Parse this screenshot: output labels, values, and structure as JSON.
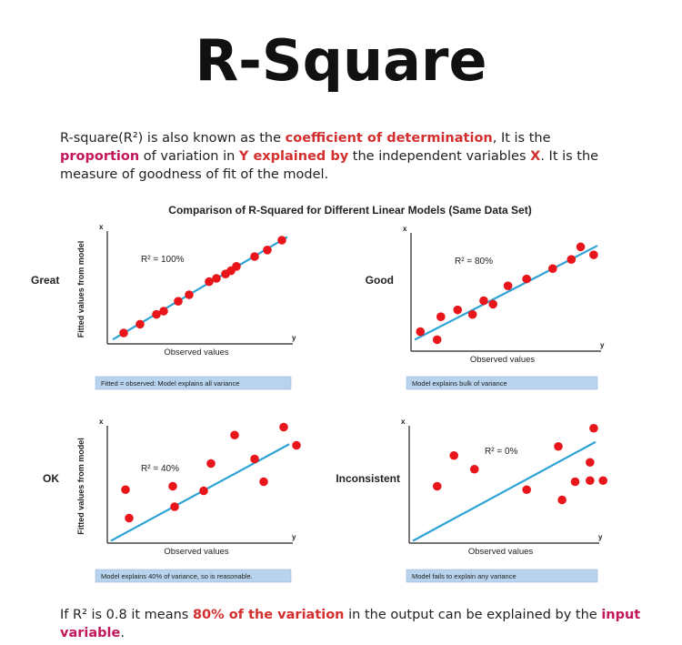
{
  "title": "R-Square",
  "intro": {
    "p1": "R-square(R²) is also known as the ",
    "h1": "coefficient of determination",
    "p2": ", It is the ",
    "h2": "proportion",
    "p3": " of variation in ",
    "h3": "Y explained by",
    "p4": " the independent variables ",
    "h4": "X",
    "p5": ". It is the measure of goodness of fit of the model."
  },
  "figure_title": "Comparison of R-Squared for Different Linear Models (Same Data Set)",
  "footer": {
    "p1": "If R² is 0.8 it means ",
    "h1": "80% of the variation",
    "p2": " in the output can be explained by the ",
    "h2": "input variable",
    "p3": "."
  },
  "colors": {
    "point": "#e8161b",
    "line": "#2fa3d6",
    "caption_bg": "#b7d3ee",
    "highlight_red": "#d32f2f",
    "highlight_pink": "#c2185b"
  },
  "chart_data": [
    {
      "type": "scatter",
      "row_label": "Great",
      "r2_label": "R² = 100%",
      "xlabel": "Observed values",
      "ylabel": "Fitted values from model",
      "x_axis_letter": "y",
      "y_axis_letter": "x",
      "caption": "Fitted = observed: Model explains all variance",
      "xlim": [
        0,
        10
      ],
      "ylim": [
        0,
        10
      ],
      "fit_line": [
        [
          0.3,
          0.4
        ],
        [
          9.9,
          9.8
        ]
      ],
      "points": [
        [
          0.9,
          1.0
        ],
        [
          1.8,
          1.8
        ],
        [
          2.7,
          2.7
        ],
        [
          3.1,
          3.0
        ],
        [
          3.9,
          3.9
        ],
        [
          4.5,
          4.5
        ],
        [
          5.6,
          5.7
        ],
        [
          6.0,
          6.0
        ],
        [
          6.5,
          6.4
        ],
        [
          6.8,
          6.7
        ],
        [
          7.1,
          7.1
        ],
        [
          8.1,
          8.0
        ],
        [
          8.8,
          8.6
        ],
        [
          9.6,
          9.5
        ]
      ]
    },
    {
      "type": "scatter",
      "row_label": "Good",
      "r2_label": "R² = 80%",
      "xlabel": "Observed values",
      "ylabel": "",
      "x_axis_letter": "y",
      "y_axis_letter": "x",
      "caption": "Model explains bulk of variance",
      "xlim": [
        0,
        10
      ],
      "ylim": [
        0,
        10
      ],
      "fit_line": [
        [
          0.2,
          1.0
        ],
        [
          10.0,
          9.2
        ]
      ],
      "points": [
        [
          0.5,
          1.7
        ],
        [
          1.4,
          1.0
        ],
        [
          1.6,
          3.0
        ],
        [
          2.5,
          3.6
        ],
        [
          3.3,
          3.2
        ],
        [
          3.9,
          4.4
        ],
        [
          4.4,
          4.1
        ],
        [
          5.2,
          5.7
        ],
        [
          6.2,
          6.3
        ],
        [
          7.6,
          7.2
        ],
        [
          8.6,
          8.0
        ],
        [
          9.1,
          9.1
        ],
        [
          9.8,
          8.4
        ]
      ]
    },
    {
      "type": "scatter",
      "row_label": "OK",
      "r2_label": "R² = 40%",
      "xlabel": "Observed values",
      "ylabel": "Fitted values from model",
      "x_axis_letter": "y",
      "y_axis_letter": "x",
      "caption": "Model explains 40% of variance, so is reasonable.",
      "xlim": [
        0,
        10
      ],
      "ylim": [
        0,
        10
      ],
      "fit_line": [
        [
          0.2,
          0.2
        ],
        [
          10.0,
          8.7
        ]
      ],
      "points": [
        [
          1.0,
          4.7
        ],
        [
          1.2,
          2.2
        ],
        [
          3.6,
          5.0
        ],
        [
          3.7,
          3.2
        ],
        [
          5.3,
          4.6
        ],
        [
          5.7,
          7.0
        ],
        [
          7.0,
          9.5
        ],
        [
          8.1,
          7.4
        ],
        [
          8.6,
          5.4
        ],
        [
          9.7,
          10.2
        ],
        [
          10.4,
          8.6
        ]
      ]
    },
    {
      "type": "scatter",
      "row_label": "Inconsistent",
      "r2_label": "R² = 0%",
      "xlabel": "Observed values",
      "ylabel": "",
      "x_axis_letter": "y",
      "y_axis_letter": "x",
      "caption": "Model fails to explain any variance",
      "xlim": [
        0,
        10
      ],
      "ylim": [
        0,
        10
      ],
      "fit_line": [
        [
          0.2,
          0.2
        ],
        [
          10.0,
          8.9
        ]
      ],
      "points": [
        [
          1.5,
          5.0
        ],
        [
          2.4,
          7.7
        ],
        [
          3.5,
          6.5
        ],
        [
          6.3,
          4.7
        ],
        [
          8.0,
          8.5
        ],
        [
          8.2,
          3.8
        ],
        [
          8.9,
          5.4
        ],
        [
          9.7,
          7.1
        ],
        [
          9.7,
          5.5
        ],
        [
          9.9,
          10.1
        ],
        [
          10.4,
          5.5
        ]
      ]
    }
  ]
}
